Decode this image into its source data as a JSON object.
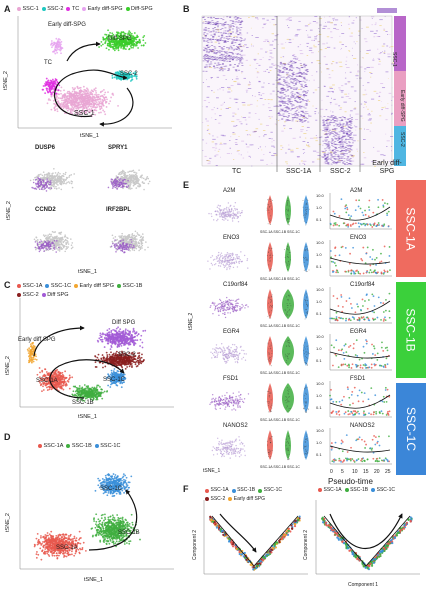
{
  "panels": {
    "A": {
      "letter": "A",
      "legend": [
        {
          "name": "SSC-1",
          "color": "#e9a6d3"
        },
        {
          "name": "SSC-2",
          "color": "#1ec7c0"
        },
        {
          "name": "TC",
          "color": "#e030e0"
        },
        {
          "name": "Early diff-SPG",
          "color": "#e6a4f0"
        },
        {
          "name": "Diff-SPG",
          "color": "#39cc2a"
        }
      ],
      "xlabel": "tSNE_1",
      "ylabel": "tSNE_2",
      "annotations": {
        "early": "Early diff-SPG",
        "diff": "Diff-SPG",
        "tc": "TC",
        "ssc1": "SSC-1",
        "ssc2": "SSC-2"
      },
      "genes": [
        "DUSP6",
        "SPRY1",
        "CCND2",
        "IRF2BPL"
      ]
    },
    "B": {
      "letter": "B",
      "groups": [
        "TC",
        "SSC-1A",
        "SSC-2",
        "Early diff-SPG"
      ],
      "side": [
        "SSC-1",
        "Early diff-SPG",
        "SSC-2"
      ]
    },
    "C": {
      "letter": "C",
      "legend": [
        {
          "name": "SSC-1A",
          "color": "#e8584e"
        },
        {
          "name": "SSC-1C",
          "color": "#3a8fd9"
        },
        {
          "name": "Early diff SPG",
          "color": "#f2a630"
        },
        {
          "name": "SSC-1B",
          "color": "#3fae3f"
        },
        {
          "name": "SSC-2",
          "color": "#8a1f1f"
        },
        {
          "name": "Diff SPG",
          "color": "#a25ad6"
        }
      ],
      "xlabel": "tSNE_1",
      "ylabel": "tSNE_2",
      "annotations": {
        "early": "Early diff SPG",
        "diff": "Diff SPG",
        "ssc1a": "SSC-1A",
        "ssc1b": "SSC-1B",
        "ssc1c": "SSC-1C",
        "ssc2": "SSC-2"
      }
    },
    "D": {
      "letter": "D",
      "legend": [
        {
          "name": "SSC-1A",
          "color": "#e8584e"
        },
        {
          "name": "SSC-1B",
          "color": "#3fae3f"
        },
        {
          "name": "SSC-1C",
          "color": "#3a8fd9"
        }
      ],
      "xlabel": "tSNE_1",
      "ylabel": "tSNE_2",
      "annotations": {
        "ssc1a": "SSC-1A",
        "ssc1b": "SSC-1B",
        "ssc1c": "SSC-1C"
      }
    },
    "E": {
      "letter": "E",
      "genes": [
        "A2M",
        "ENO3",
        "C19orf84",
        "EGR4",
        "FSD1",
        "NANOS2"
      ],
      "violin_cats": [
        "SSC-1A",
        "SSC-1B",
        "SSC-1C"
      ],
      "sidebars": [
        {
          "label": "SSC-1A",
          "color": "#ef6b5f"
        },
        {
          "label": "SSC-1B",
          "color": "#3bd03b"
        },
        {
          "label": "SSC-1C",
          "color": "#3b86d8"
        }
      ],
      "xlabel": "Pseudo-time",
      "xticks": [
        "0",
        "5",
        "10",
        "15",
        "20",
        "25"
      ],
      "yticks": [
        "10.0",
        "1.0",
        "0.1"
      ],
      "ylabel_small": "tSNE_2",
      "xlabel_small": "tSNE_1"
    },
    "F": {
      "letter": "F",
      "legend_left": [
        {
          "name": "SSC-1A",
          "color": "#e8584e"
        },
        {
          "name": "SSC-1B",
          "color": "#3a8fd9"
        },
        {
          "name": "SSC-1C",
          "color": "#3fae3f"
        },
        {
          "name": "SSC-2",
          "color": "#8a1f1f"
        },
        {
          "name": "Early diff SPG",
          "color": "#f2a630"
        }
      ],
      "legend_right": [
        {
          "name": "SSC-1A",
          "color": "#e8584e"
        },
        {
          "name": "SSC-1B",
          "color": "#3fae3f"
        },
        {
          "name": "SSC-1C",
          "color": "#3a8fd9"
        }
      ],
      "ylabel": "Component 2",
      "xlabel": "Component 1"
    }
  }
}
